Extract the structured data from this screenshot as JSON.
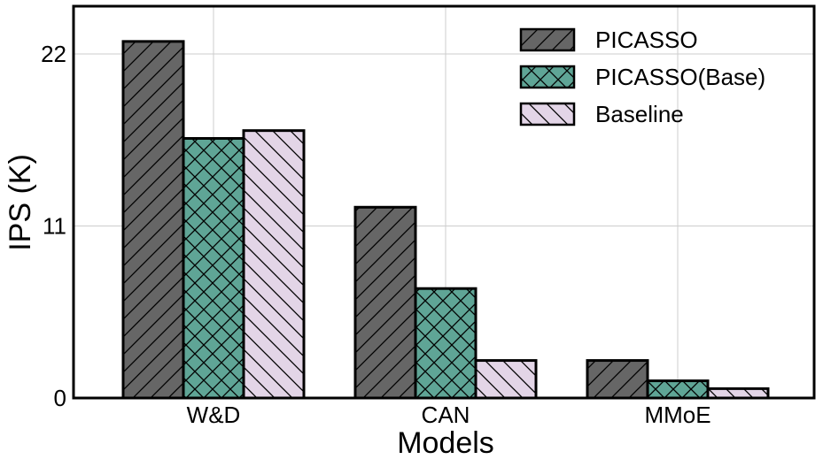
{
  "chart_data": {
    "type": "bar",
    "title": "",
    "xlabel": "Models",
    "ylabel": "IPS (K)",
    "categories": [
      "W&D",
      "CAN",
      "MMoE"
    ],
    "ylim": [
      0,
      25
    ],
    "yticks": [
      0,
      11,
      22
    ],
    "ytick_labels": [
      "0",
      "11",
      "22"
    ],
    "grid": true,
    "legend_position": "top-right",
    "series": [
      {
        "name": "PICASSO",
        "values": [
          22.8,
          12.2,
          2.4
        ],
        "color": "#666666",
        "hatch": "diagonal-forward"
      },
      {
        "name": "PICASSO(Base)",
        "values": [
          16.6,
          7.0,
          1.1
        ],
        "color": "#5fa596",
        "hatch": "crosshatch"
      },
      {
        "name": "Baseline",
        "values": [
          17.1,
          2.4,
          0.6
        ],
        "color": "#e3d5e7",
        "hatch": "diagonal-back"
      }
    ]
  }
}
